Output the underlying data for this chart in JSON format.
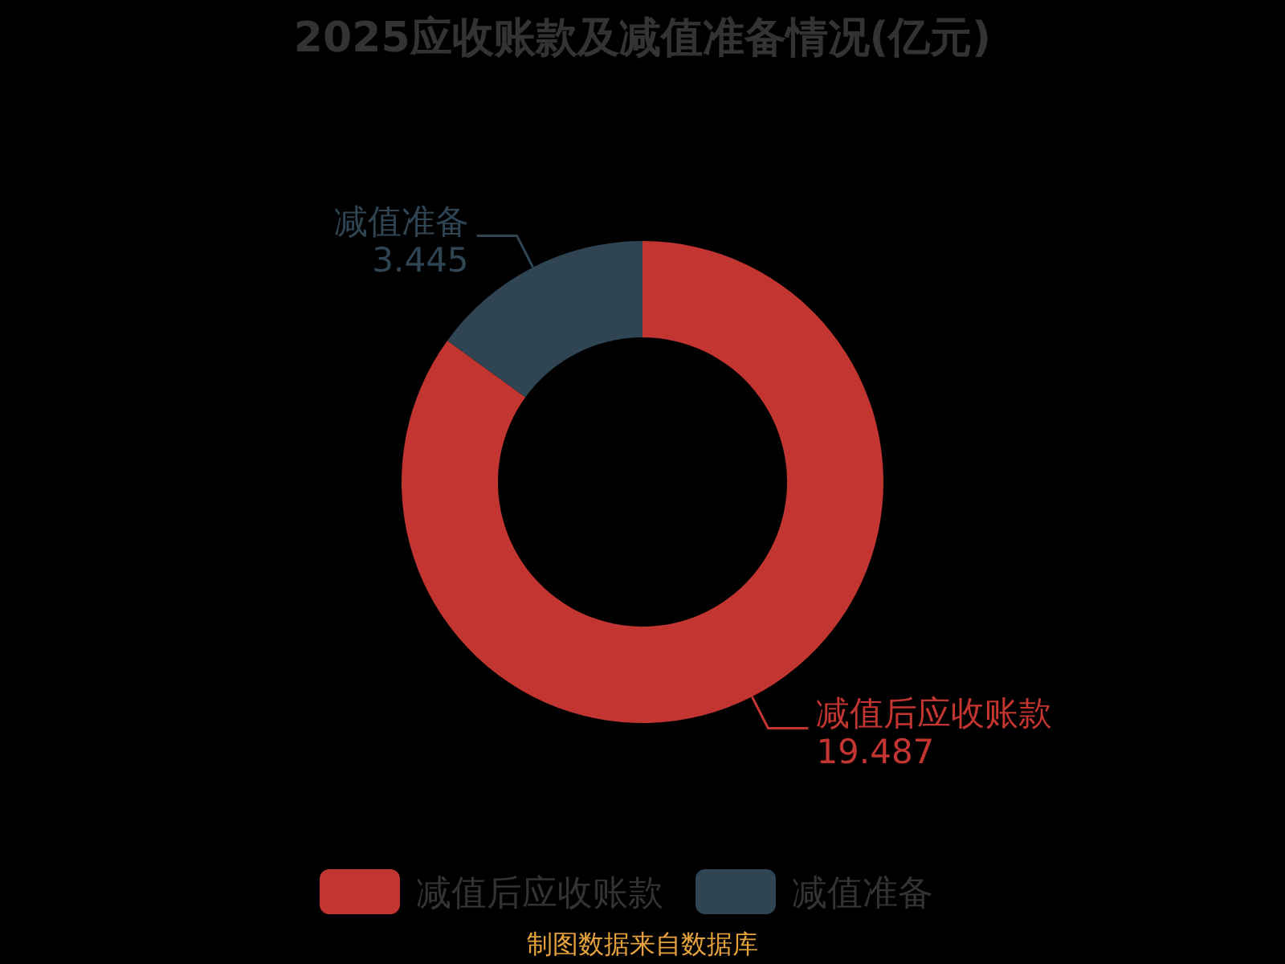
{
  "chart_data": {
    "type": "donut",
    "title": "2025应收账款及减值准备情况(亿元)",
    "categories": [
      "减值后应收账款",
      "减值准备"
    ],
    "values": [
      19.487,
      3.445
    ],
    "colors": [
      "#c23531",
      "#2f4554"
    ],
    "data_labels": true,
    "legend": "bottom",
    "annotations": [
      "制图数据来自数据库"
    ]
  }
}
